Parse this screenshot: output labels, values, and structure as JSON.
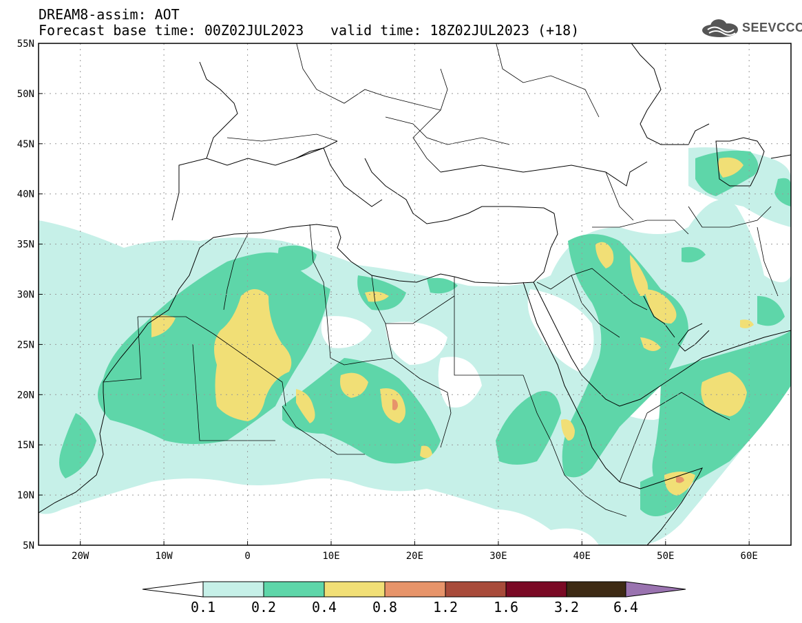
{
  "header": {
    "title_line1": "DREAM8-assim: AOT",
    "title_line2": "Forecast base time: 00Z02JUL2023",
    "valid_time": "valid time: 18Z02JUL2023 (+18)"
  },
  "logo": {
    "text": "SEEVCCC",
    "icon": "cloud-logo-icon"
  },
  "map": {
    "lon_range": [
      -25,
      65
    ],
    "lat_range": [
      5,
      55
    ],
    "lon_ticks": [
      "20W",
      "10W",
      "0",
      "10E",
      "20E",
      "30E",
      "40E",
      "50E",
      "60E"
    ],
    "lat_ticks": [
      "55N",
      "50N",
      "45N",
      "40N",
      "35N",
      "30N",
      "25N",
      "20N",
      "15N",
      "10N",
      "5N"
    ],
    "grid": "dotted"
  },
  "colorbar": {
    "levels": [
      "0.1",
      "0.2",
      "0.4",
      "0.8",
      "1.2",
      "1.6",
      "3.2",
      "6.4"
    ],
    "colors": [
      "#ffffff",
      "#c6f0e8",
      "#5ed6a9",
      "#f1df76",
      "#e7946a",
      "#a84b3a",
      "#7a0a25",
      "#3d2a14",
      "#9a73b0"
    ]
  }
}
